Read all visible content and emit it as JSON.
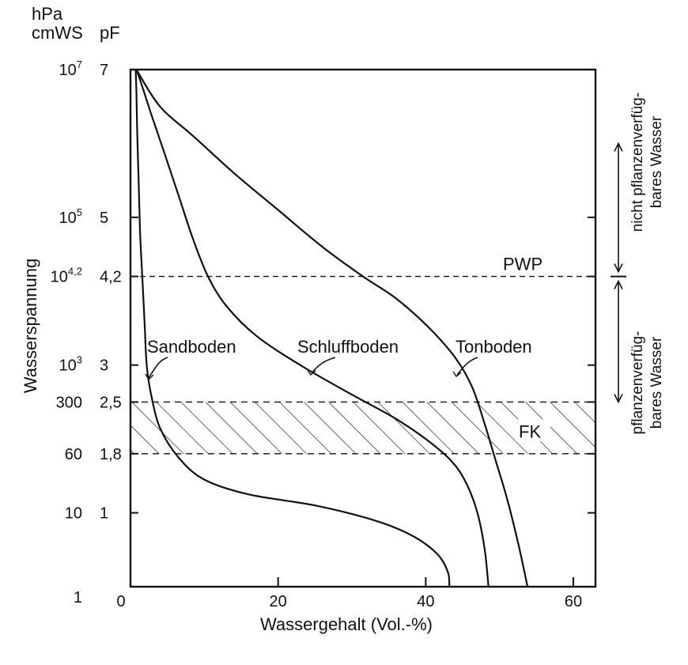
{
  "chart_data": {
    "type": "line",
    "title": "",
    "xlabel": "Wassergehalt (Vol.-%)",
    "ylabel": "Wasserspannung",
    "xlim": [
      0,
      63
    ],
    "ylim": [
      0,
      7
    ],
    "y_scale": "pF",
    "grid": false,
    "x_ticks": [
      {
        "value": 0,
        "label": "0"
      },
      {
        "value": 20,
        "label": "20"
      },
      {
        "value": 40,
        "label": "40"
      },
      {
        "value": 60,
        "label": "60"
      }
    ],
    "y_axis_headers": {
      "hpa": "hPa",
      "cmws": "cmWS",
      "pf": "pF"
    },
    "y_ticks": [
      {
        "pf": 7,
        "pf_label": "7",
        "hpa_label": "10",
        "hpa_exp": "7"
      },
      {
        "pf": 5,
        "pf_label": "5",
        "hpa_label": "10",
        "hpa_exp": "5"
      },
      {
        "pf": 4.2,
        "pf_label": "4,2",
        "hpa_label": "10",
        "hpa_exp": "4,2"
      },
      {
        "pf": 3,
        "pf_label": "3",
        "hpa_label": "10",
        "hpa_exp": "3"
      },
      {
        "pf": 2.5,
        "pf_label": "2,5",
        "hpa_label": "300",
        "hpa_exp": ""
      },
      {
        "pf": 1.8,
        "pf_label": "1,8",
        "hpa_label": "60",
        "hpa_exp": ""
      },
      {
        "pf": 1,
        "pf_label": "1",
        "hpa_label": "10",
        "hpa_exp": ""
      },
      {
        "pf": 0,
        "pf_label": "",
        "hpa_label": "1",
        "hpa_exp": ""
      }
    ],
    "series": [
      {
        "name": "Sandboden",
        "x": [
          43.2,
          43.0,
          41.5,
          38.0,
          33.0,
          25.0,
          16.0,
          10.0,
          6.5,
          4.0,
          2.8,
          2.2,
          1.9,
          1.6,
          1.3,
          1.1,
          0.9,
          0.8,
          0.7
        ],
        "y": [
          0.0,
          0.2,
          0.45,
          0.7,
          0.9,
          1.1,
          1.25,
          1.45,
          1.75,
          2.15,
          2.6,
          3.0,
          3.6,
          4.2,
          4.8,
          5.5,
          6.2,
          6.7,
          7.0
        ]
      },
      {
        "name": "Schluffboden",
        "x": [
          48.5,
          48.0,
          47.0,
          45.5,
          43.5,
          40.0,
          35.5,
          30.0,
          23.0,
          17.0,
          13.0,
          10.5,
          8.5,
          6.5,
          4.5,
          2.8,
          1.5,
          0.8
        ],
        "y": [
          0.0,
          0.5,
          1.0,
          1.4,
          1.7,
          2.0,
          2.3,
          2.6,
          3.0,
          3.4,
          3.8,
          4.2,
          4.7,
          5.3,
          5.9,
          6.4,
          6.8,
          7.0
        ]
      },
      {
        "name": "Tonboden",
        "x": [
          53.8,
          52.5,
          51.0,
          49.5,
          48.0,
          46.3,
          44.0,
          40.5,
          36.0,
          31.5,
          26.0,
          20.0,
          14.0,
          8.5,
          4.0,
          0.8
        ],
        "y": [
          0.0,
          0.6,
          1.2,
          1.7,
          2.2,
          2.7,
          3.1,
          3.5,
          3.9,
          4.2,
          4.6,
          5.1,
          5.6,
          6.1,
          6.5,
          7.0
        ]
      }
    ],
    "reference_lines": [
      {
        "label": "PWP",
        "pf": 4.2,
        "style": "dashed"
      }
    ],
    "bands": [
      {
        "label": "FK",
        "pf_from": 1.8,
        "pf_to": 2.5,
        "style": "hatched"
      }
    ],
    "side_annotations": [
      {
        "lines": [
          "nicht pflanzenverfüg-",
          "bares Wasser"
        ],
        "pf_from": 4.2,
        "pf_to": 6.0
      },
      {
        "lines": [
          "pflanzenverfüg-",
          "bares Wasser"
        ],
        "pf_from": 2.5,
        "pf_to": 4.2
      }
    ]
  }
}
